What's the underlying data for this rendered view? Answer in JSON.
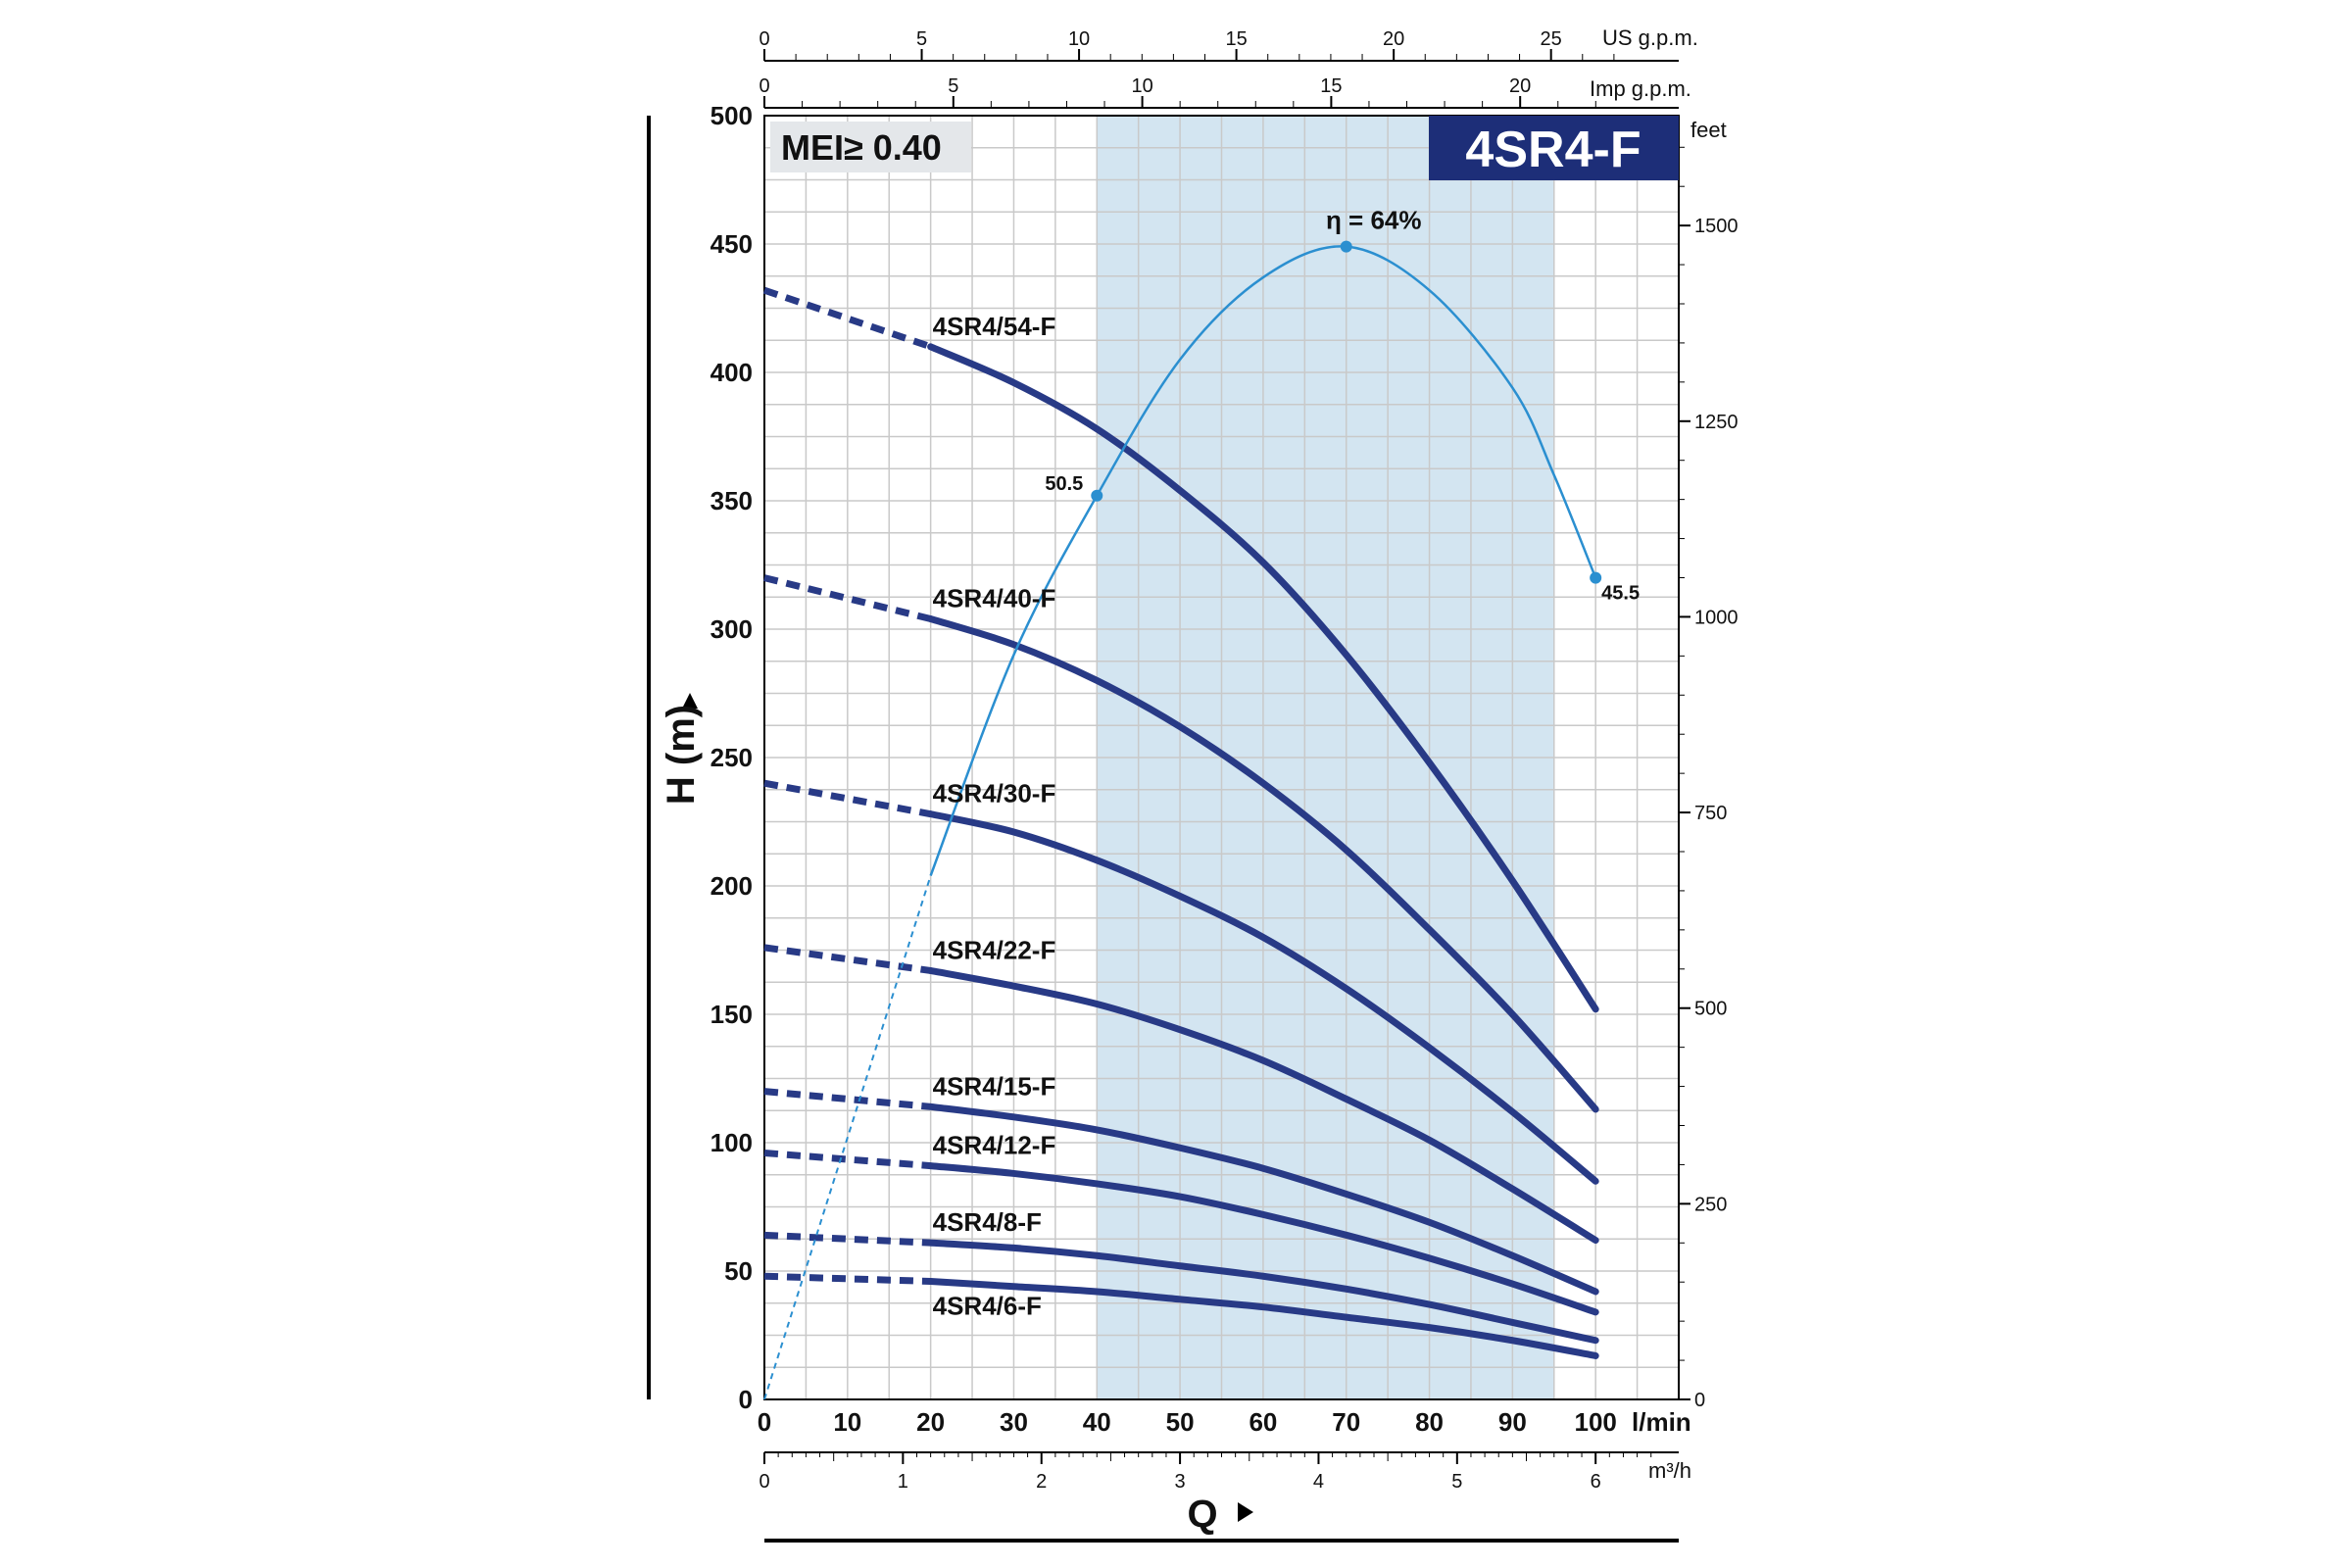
{
  "chart_data": {
    "type": "line",
    "title": "4SR4-F",
    "mei_label": "MEI≥ 0.40",
    "xlabel": "Q",
    "ylabel": "H (m)",
    "x_unit": "l/min",
    "xlim": [
      0,
      110
    ],
    "ylim": [
      0,
      500
    ],
    "x_ticks": [
      0,
      10,
      20,
      30,
      40,
      50,
      60,
      70,
      80,
      90,
      100
    ],
    "y_ticks": [
      0,
      50,
      100,
      150,
      200,
      250,
      300,
      350,
      400,
      450,
      500
    ],
    "grid": true,
    "secondary_axes": {
      "feet": {
        "label": "feet",
        "ticks": [
          0,
          250,
          500,
          750,
          1000,
          1250,
          1500
        ]
      },
      "us_gpm": {
        "label": "US g.p.m.",
        "ticks": [
          0,
          5,
          10,
          15,
          20,
          25
        ]
      },
      "imp_gpm": {
        "label": "Imp g.p.m.",
        "ticks": [
          0,
          5,
          10,
          15,
          20
        ]
      },
      "m3h": {
        "label": "m³/h",
        "ticks": [
          0,
          1,
          2,
          3,
          4,
          5,
          6
        ]
      }
    },
    "operating_range": {
      "x_min": 40,
      "x_max": 95
    },
    "series": [
      {
        "name": "4SR4/54-F",
        "dashed": {
          "x": [
            0,
            20
          ],
          "y": [
            432,
            410
          ]
        },
        "x": [
          20,
          30,
          40,
          50,
          60,
          70,
          80,
          90,
          100
        ],
        "y": [
          410,
          396,
          378,
          354,
          326,
          290,
          248,
          202,
          152
        ]
      },
      {
        "name": "4SR4/40-F",
        "dashed": {
          "x": [
            0,
            20
          ],
          "y": [
            320,
            304
          ]
        },
        "x": [
          20,
          30,
          40,
          50,
          60,
          70,
          80,
          90,
          100
        ],
        "y": [
          304,
          294,
          280,
          262,
          240,
          214,
          183,
          150,
          113
        ]
      },
      {
        "name": "4SR4/30-F",
        "dashed": {
          "x": [
            0,
            20
          ],
          "y": [
            240,
            228
          ]
        },
        "x": [
          20,
          30,
          40,
          50,
          60,
          70,
          80,
          90,
          100
        ],
        "y": [
          228,
          221,
          210,
          196,
          180,
          160,
          137,
          112,
          85
        ]
      },
      {
        "name": "4SR4/22-F",
        "dashed": {
          "x": [
            0,
            20
          ],
          "y": [
            176,
            167
          ]
        },
        "x": [
          20,
          30,
          40,
          50,
          60,
          70,
          80,
          90,
          100
        ],
        "y": [
          167,
          161,
          154,
          144,
          132,
          117,
          101,
          82,
          62
        ]
      },
      {
        "name": "4SR4/15-F",
        "dashed": {
          "x": [
            0,
            20
          ],
          "y": [
            120,
            114
          ]
        },
        "x": [
          20,
          30,
          40,
          50,
          60,
          70,
          80,
          90,
          100
        ],
        "y": [
          114,
          110,
          105,
          98,
          90,
          80,
          69,
          56,
          42
        ]
      },
      {
        "name": "4SR4/12-F",
        "dashed": {
          "x": [
            0,
            20
          ],
          "y": [
            96,
            91
          ]
        },
        "x": [
          20,
          30,
          40,
          50,
          60,
          70,
          80,
          90,
          100
        ],
        "y": [
          91,
          88,
          84,
          79,
          72,
          64,
          55,
          45,
          34
        ]
      },
      {
        "name": "4SR4/8-F",
        "dashed": {
          "x": [
            0,
            20
          ],
          "y": [
            64,
            61
          ]
        },
        "x": [
          20,
          30,
          40,
          50,
          60,
          70,
          80,
          90,
          100
        ],
        "y": [
          61,
          59,
          56,
          52,
          48,
          43,
          37,
          30,
          23
        ]
      },
      {
        "name": "4SR4/6-F",
        "dashed": {
          "x": [
            0,
            20
          ],
          "y": [
            48,
            46
          ]
        },
        "x": [
          20,
          30,
          40,
          50,
          60,
          70,
          80,
          90,
          100
        ],
        "y": [
          46,
          44,
          42,
          39,
          36,
          32,
          28,
          23,
          17
        ]
      }
    ],
    "efficiency_curve": {
      "dashed": {
        "x": [
          0,
          20
        ],
        "y": [
          0,
          204
        ]
      },
      "x": [
        20,
        30,
        40,
        50,
        60,
        70,
        80,
        90,
        95,
        100
      ],
      "y": [
        204,
        290,
        352,
        405,
        437,
        449,
        432,
        394,
        360,
        320
      ],
      "markers": [
        {
          "x": 40,
          "y": 352,
          "label": "50.5"
        },
        {
          "x": 70,
          "y": 449,
          "label": "η = 64%"
        },
        {
          "x": 100,
          "y": 320,
          "label": "45.5"
        }
      ]
    },
    "colors": {
      "pump_curve": "#283a86",
      "efficiency": "#2b8fd0",
      "operating_band": "#d3e5f1",
      "badge": "#1d2e78",
      "mei_box": "#e4e7ea",
      "grid": "#c9c9c9"
    }
  }
}
